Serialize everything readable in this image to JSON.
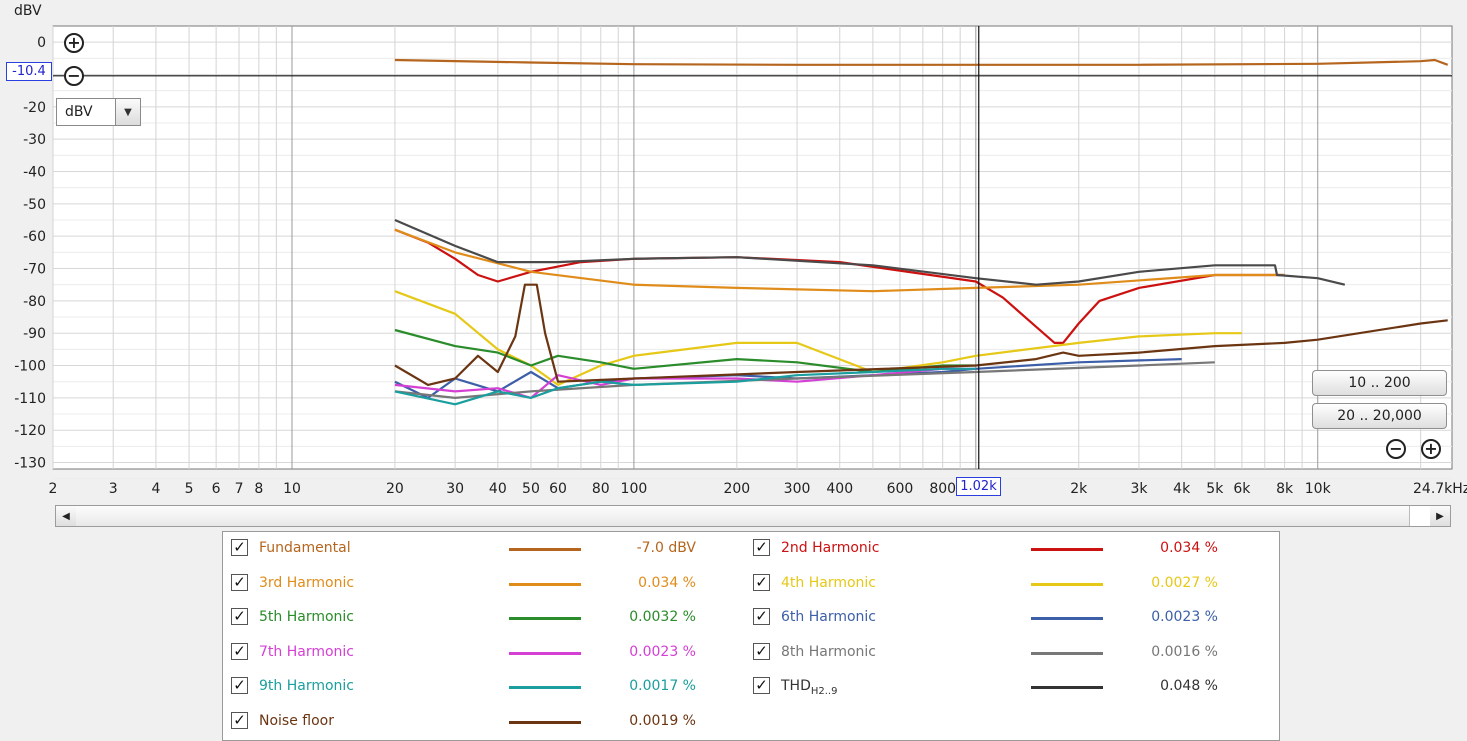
{
  "chart": {
    "y_unit_label": "dBV",
    "x_end_label": "24.7kHz",
    "cursor_y_value": "-10.4",
    "cursor_x_value": "1.02k",
    "y_ticks": [
      "0",
      "-20",
      "-30",
      "-40",
      "-50",
      "-60",
      "-70",
      "-80",
      "-90",
      "-100",
      "-110",
      "-120",
      "-130"
    ],
    "x_ticks": [
      "2",
      "3",
      "4",
      "5",
      "6",
      "7",
      "8",
      "10",
      "20",
      "30",
      "40",
      "50",
      "60",
      "80",
      "100",
      "200",
      "300",
      "400",
      "600",
      "800",
      "2k",
      "3k",
      "4k",
      "5k",
      "6k",
      "8k",
      "10k"
    ],
    "unit_select_value": "dBV",
    "zoom_in_icon": "zoom-in-icon",
    "zoom_out_icon": "zoom-out-icon"
  },
  "range_buttons": {
    "btn1": "10 .. 200",
    "btn2": "20 .. 20,000"
  },
  "chart_data": {
    "type": "line",
    "x_scale": "log",
    "xlim": [
      2,
      24700
    ],
    "ylim": [
      -132,
      5
    ],
    "y_unit": "dBV",
    "cursor": {
      "x": 1020,
      "y": -10.4
    },
    "grid": true,
    "series": [
      {
        "name": "Fundamental",
        "color": "#b5651d",
        "x": [
          20,
          50,
          100,
          300,
          1000,
          3000,
          10000,
          20000,
          22000,
          24000
        ],
        "y": [
          -5.5,
          -6.3,
          -6.8,
          -7.0,
          -7.0,
          -7.0,
          -6.7,
          -5.9,
          -5.5,
          -7.0
        ]
      },
      {
        "name": "2nd Harmonic",
        "color": "#cc1111",
        "x": [
          20,
          25,
          30,
          35,
          40,
          50,
          70,
          100,
          200,
          400,
          1000,
          1200,
          1500,
          1700,
          1800,
          2000,
          2300,
          3000,
          5000,
          8000
        ],
        "y": [
          -58,
          -62,
          -67,
          -72,
          -74,
          -71,
          -68,
          -67,
          -66.5,
          -68,
          -74,
          -79,
          -88,
          -93,
          -93,
          -87,
          -80,
          -76,
          -72,
          -72
        ]
      },
      {
        "name": "3rd Harmonic",
        "color": "#e08c1a",
        "x": [
          20,
          30,
          50,
          100,
          200,
          500,
          1000,
          2000,
          5000,
          8000
        ],
        "y": [
          -58,
          -65,
          -71,
          -75,
          -76,
          -77,
          -76,
          -75,
          -72,
          -72
        ]
      },
      {
        "name": "4th Harmonic",
        "color": "#e6c817",
        "x": [
          20,
          30,
          40,
          50,
          60,
          80,
          100,
          200,
          300,
          500,
          800,
          1000,
          2000,
          3000,
          5000,
          6000
        ],
        "y": [
          -77,
          -84,
          -95,
          -100,
          -106,
          -100,
          -97,
          -93,
          -93,
          -102,
          -99,
          -97,
          -93,
          -91,
          -90,
          -90
        ]
      },
      {
        "name": "5th Harmonic",
        "color": "#2a8c2a",
        "x": [
          20,
          30,
          40,
          50,
          60,
          80,
          100,
          200,
          300,
          500,
          800,
          1000
        ],
        "y": [
          -89,
          -94,
          -96,
          -100,
          -97,
          -99,
          -101,
          -98,
          -99,
          -102,
          -100,
          -100
        ]
      },
      {
        "name": "6th Harmonic",
        "color": "#3c5fa8",
        "x": [
          20,
          25,
          30,
          40,
          50,
          60,
          80,
          100,
          200,
          300,
          500,
          800,
          1000,
          2000,
          4000
        ],
        "y": [
          -105,
          -110,
          -104,
          -108,
          -102,
          -107,
          -105,
          -104,
          -103,
          -104,
          -103,
          -102,
          -101,
          -99,
          -98
        ]
      },
      {
        "name": "7th Harmonic",
        "color": "#d440d4",
        "x": [
          20,
          30,
          40,
          50,
          60,
          80,
          100,
          200,
          300,
          500,
          800,
          1000
        ],
        "y": [
          -106,
          -108,
          -107,
          -110,
          -103,
          -106,
          -104,
          -104,
          -105,
          -103,
          -101,
          -101
        ]
      },
      {
        "name": "8th Harmonic",
        "color": "#777777",
        "x": [
          20,
          30,
          50,
          100,
          300,
          1000,
          3000,
          5000
        ],
        "y": [
          -108,
          -110,
          -108,
          -106,
          -104,
          -102,
          -100,
          -99
        ]
      },
      {
        "name": "9th Harmonic",
        "color": "#1a9e9e",
        "x": [
          20,
          30,
          40,
          50,
          60,
          80,
          100,
          200,
          300,
          500,
          800,
          1000
        ],
        "y": [
          -108,
          -112,
          -108,
          -110,
          -107,
          -105,
          -106,
          -105,
          -103,
          -102,
          -101,
          -101
        ]
      },
      {
        "name": "THD H2..9",
        "color": "#4a4a4a",
        "x": [
          20,
          30,
          40,
          60,
          100,
          200,
          500,
          1000,
          1500,
          2000,
          3000,
          5000,
          7500,
          7600,
          10000,
          12000
        ],
        "y": [
          -55,
          -63,
          -68,
          -68,
          -67,
          -66.5,
          -69,
          -73,
          -75,
          -74,
          -71,
          -69,
          -69,
          -72,
          -73,
          -75
        ]
      },
      {
        "name": "Noise floor",
        "color": "#6b3512",
        "x": [
          20,
          25,
          30,
          35,
          40,
          45,
          48,
          52,
          55,
          60,
          100,
          300,
          1000,
          1500,
          1800,
          2000,
          3000,
          5000,
          8000,
          10000,
          20000,
          24000
        ],
        "y": [
          -100,
          -106,
          -104,
          -97,
          -102,
          -91,
          -75,
          -75,
          -90,
          -105,
          -104,
          -102,
          -100,
          -98,
          -96,
          -97,
          -96,
          -94,
          -93,
          -92,
          -87,
          -86
        ]
      }
    ]
  },
  "legend": [
    {
      "label": "Fundamental",
      "value": "-7.0 dBV",
      "color": "#b5651d"
    },
    {
      "label": "2nd Harmonic",
      "value": "0.034 %",
      "color": "#cc1111"
    },
    {
      "label": "3rd Harmonic",
      "value": "0.034 %",
      "color": "#e08c1a"
    },
    {
      "label": "4th Harmonic",
      "value": "0.0027 %",
      "color": "#e6c817"
    },
    {
      "label": "5th Harmonic",
      "value": "0.0032 %",
      "color": "#2a8c2a"
    },
    {
      "label": "6th Harmonic",
      "value": "0.0023 %",
      "color": "#3c5fa8"
    },
    {
      "label": "7th Harmonic",
      "value": "0.0023 %",
      "color": "#d440d4"
    },
    {
      "label": "8th Harmonic",
      "value": "0.0016 %",
      "color": "#777777"
    },
    {
      "label": "9th Harmonic",
      "value": "0.0017 %",
      "color": "#1a9e9e"
    },
    {
      "label": "THD",
      "label_sub": "H2..9",
      "value": "0.048 %",
      "color": "#333333"
    },
    {
      "label": "Noise floor",
      "value": "0.0019 %",
      "color": "#6b3512"
    }
  ]
}
